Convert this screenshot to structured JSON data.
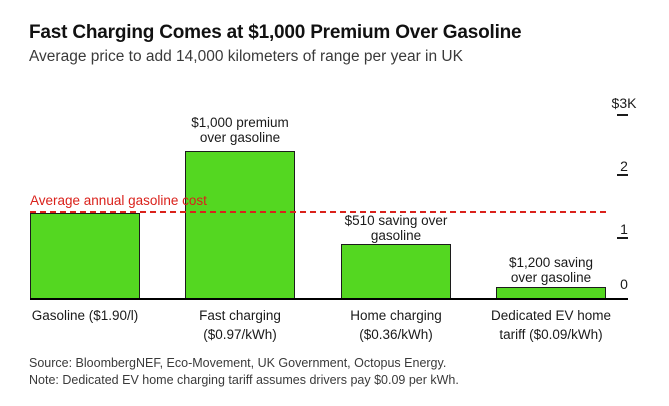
{
  "header": {
    "title": "Fast Charging Comes at $1,000 Premium Over Gasoline",
    "subtitle": "Average price to add 14,000 kilometers of range per year in UK"
  },
  "chart_data": {
    "type": "bar",
    "title": "Fast Charging Comes at $1,000 Premium Over Gasoline",
    "subtitle": "Average price to add 14,000 kilometers of range per year in UK",
    "categories": [
      "Gasoline ($1.90/l)",
      "Fast charging ($0.97/kWh)",
      "Home charging ($0.36/kWh)",
      "Dedicated EV home tariff ($0.09/kWh)"
    ],
    "values": [
      1400,
      2400,
      890,
      200
    ],
    "unit": "USD per year",
    "ylim": [
      0,
      3000
    ],
    "ytick_values": [
      0,
      1000,
      2000,
      3000
    ],
    "ytick_labels": [
      "0",
      "1",
      "2",
      "$3K"
    ],
    "bar_color": "#54d721",
    "bar_border_color": "#1c1c1c",
    "grid": false,
    "legend": false,
    "reference_line": {
      "label": "Average annual gasoline cost",
      "value": 1400,
      "color": "#da211b",
      "style": "dashed"
    },
    "annotations": [
      {
        "target": "Fast charging",
        "text": "$1,000 premium over gasoline"
      },
      {
        "target": "Home charging",
        "text": "$510 saving over gasoline"
      },
      {
        "target": "Dedicated EV home tariff",
        "text": "$1,200 saving over gasoline"
      }
    ]
  },
  "labels": {
    "reference_line": "Average annual gasoline cost",
    "annotations": [
      {
        "line1": "$1,000 premium",
        "line2": "over gasoline"
      },
      {
        "line1": "$510 saving over",
        "line2": "gasoline"
      },
      {
        "line1": "$1,200 saving",
        "line2": "over gasoline"
      }
    ],
    "x": [
      {
        "line1": "Gasoline ($1.90/l)",
        "line2": ""
      },
      {
        "line1": "Fast charging",
        "line2": "($0.97/kWh)"
      },
      {
        "line1": "Home charging",
        "line2": "($0.36/kWh)"
      },
      {
        "line1": "Dedicated EV home",
        "line2": "tariff ($0.09/kWh)"
      }
    ],
    "y": {
      "k3": "$3K",
      "k2": "2",
      "k1": "1",
      "k0": "0"
    }
  },
  "footer": {
    "source": "Source: BloombergNEF, Eco-Movement, UK Government, Octopus Energy.",
    "note": "Note: Dedicated EV home charging tariff assumes drivers pay $0.09 per kWh."
  }
}
